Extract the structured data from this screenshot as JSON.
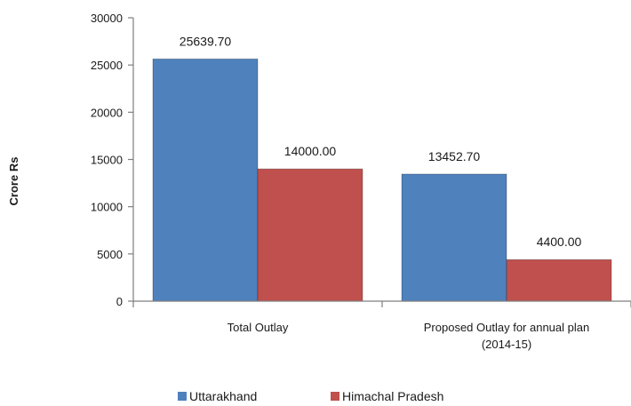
{
  "chart_data": {
    "type": "bar",
    "title": "",
    "xlabel": "",
    "ylabel": "Crore Rs",
    "ylim": [
      0,
      30000
    ],
    "yticks": [
      0,
      5000,
      10000,
      15000,
      20000,
      25000,
      30000
    ],
    "categories": [
      [
        "Total Outlay"
      ],
      [
        "Proposed Outlay for annual plan",
        "(2014-15)"
      ]
    ],
    "series": [
      {
        "name": "Uttarakhand",
        "color": "#4f81bd",
        "values": [
          25639.7,
          13452.7
        ],
        "labels": [
          "25639.70",
          "13452.70"
        ]
      },
      {
        "name": "Himachal Pradesh",
        "color": "#c0504d",
        "values": [
          14000.0,
          4400.0
        ],
        "labels": [
          "14000.00",
          "4400.00"
        ]
      }
    ],
    "grid": false,
    "legend": "bottom"
  }
}
